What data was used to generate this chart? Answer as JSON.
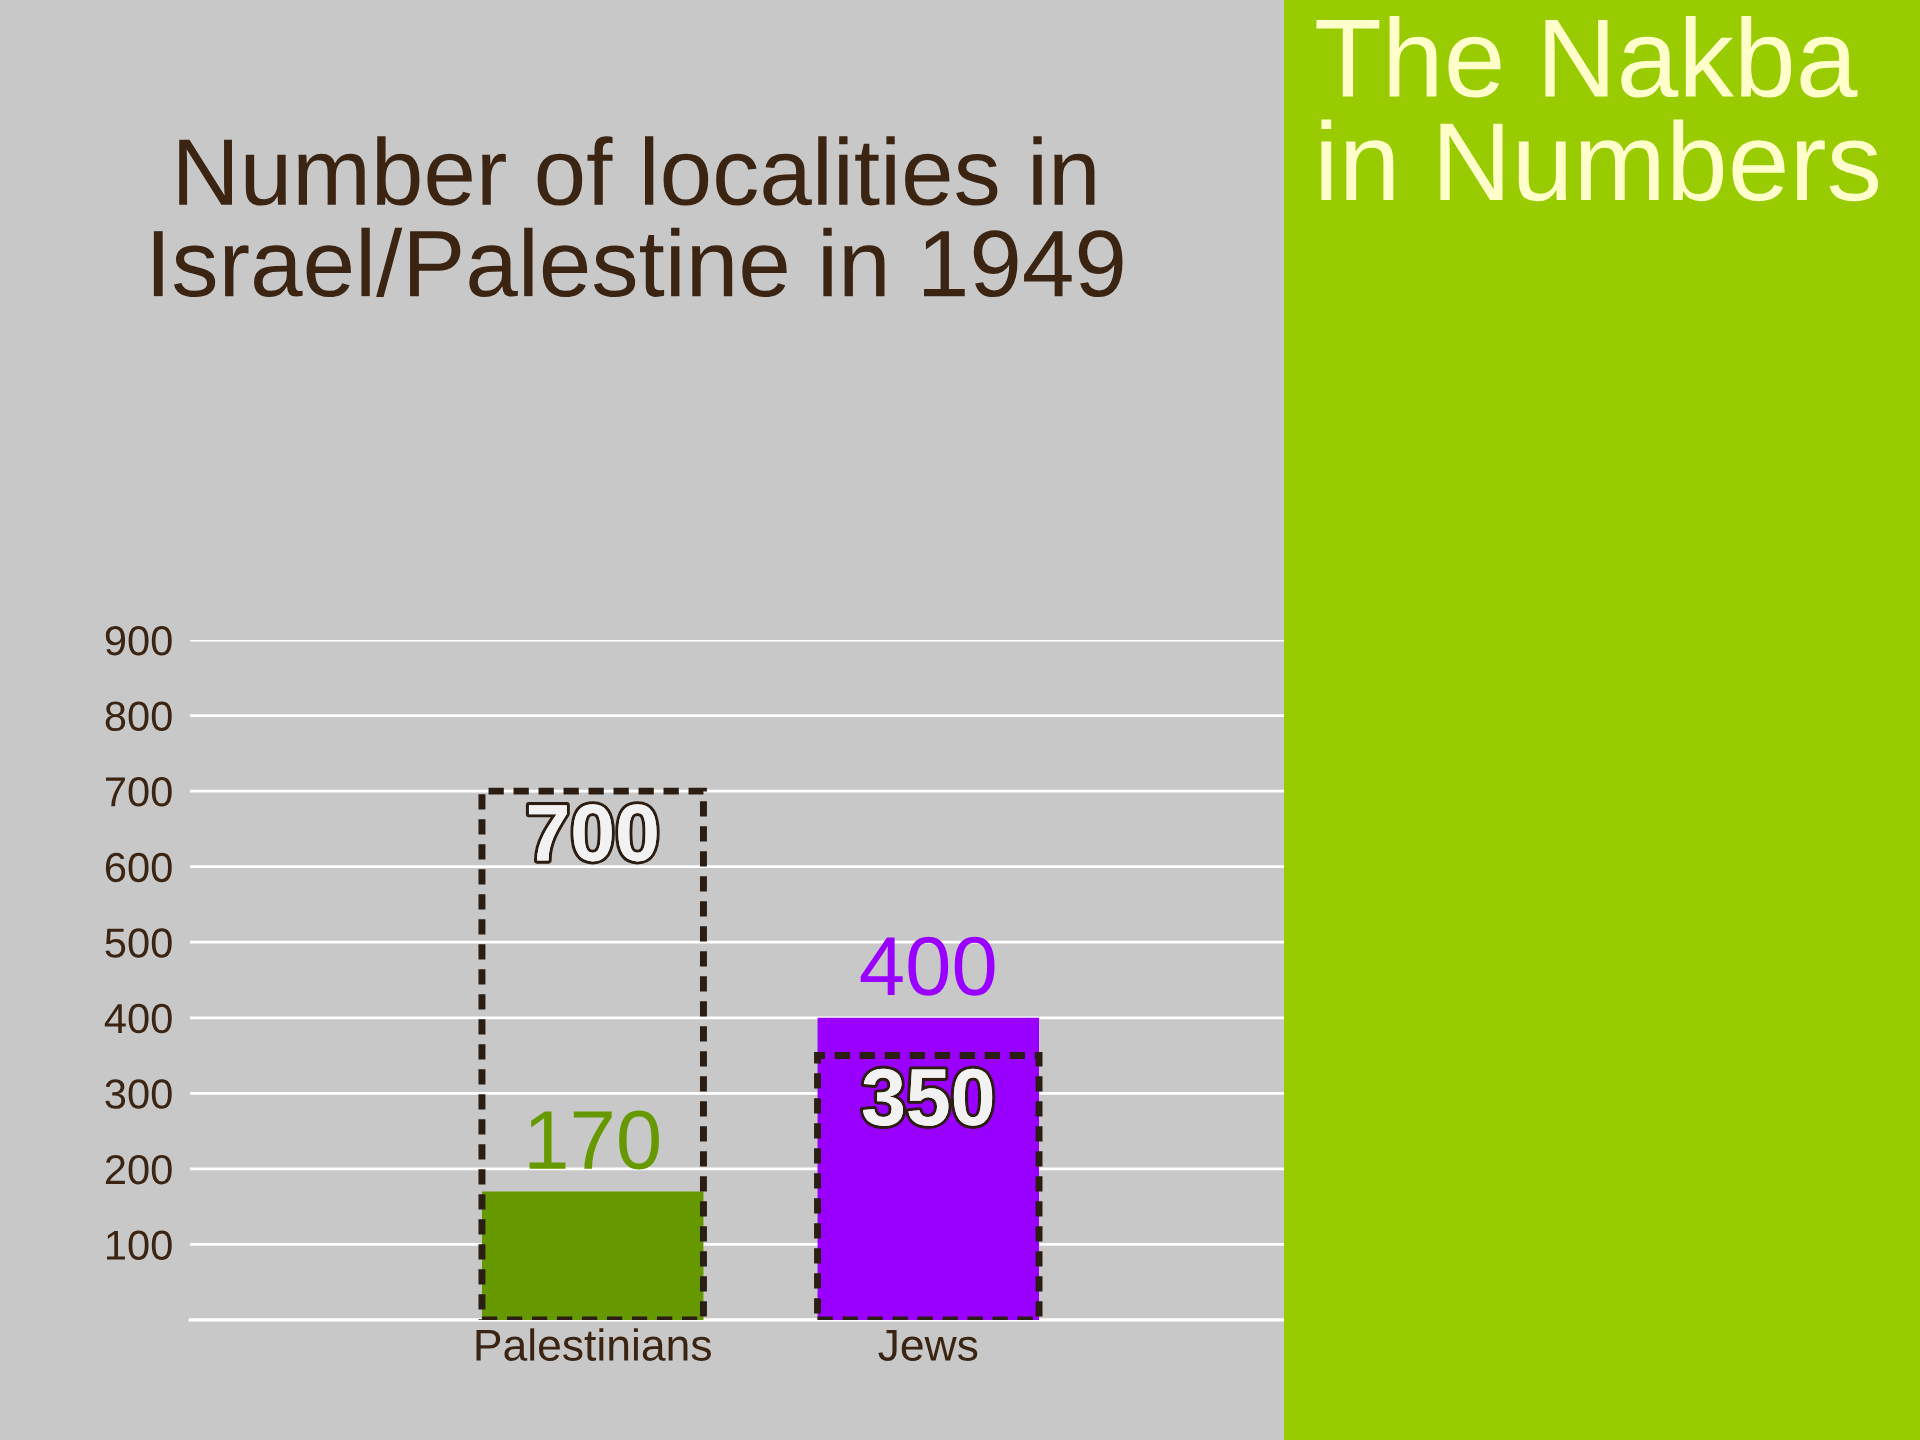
{
  "chart_data": {
    "type": "bar",
    "title": "Number of localities in\nIsrael/Palestine in 1949",
    "annotations": [
      "The Nakba\nin Numbers"
    ],
    "categories": [
      "Palestinians",
      "Jews"
    ],
    "series": [
      {
        "colors": [
          "#669900",
          "#9900ff"
        ],
        "values": [
          170,
          400
        ]
      },
      {
        "color": "#2b1d12",
        "values": [
          700,
          350
        ],
        "line_style": "dashed"
      }
    ],
    "ylim": [
      0,
      900
    ],
    "yticks": [
      {
        "value": 0,
        "label": null
      },
      100,
      200,
      300,
      400,
      500,
      600,
      700,
      800,
      900
    ],
    "grid": "y",
    "data_labels": true
  }
}
